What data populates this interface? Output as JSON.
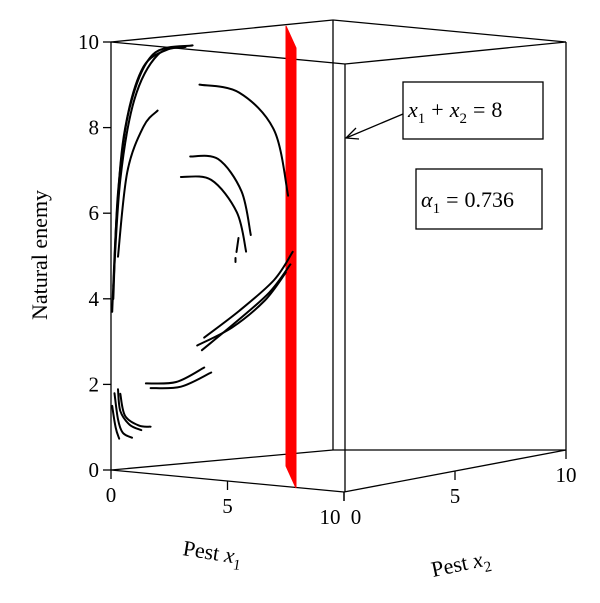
{
  "chart_data": {
    "type": "line",
    "view": "3d-phase-portrait",
    "xlabel": {
      "prefix": "Pest ",
      "var": "x",
      "sub": "1"
    },
    "x2label": {
      "prefix": "Pest ",
      "var": "x",
      "sub": "2"
    },
    "ylabel": "Natural enemy",
    "x1_ticks": [
      "0",
      "5",
      "10"
    ],
    "x2_ticks": [
      "0",
      "5",
      "10"
    ],
    "y_ticks": [
      "0",
      "2",
      "4",
      "6",
      "8",
      "10"
    ],
    "x1lim": [
      0,
      10
    ],
    "x2lim": [
      0,
      10
    ],
    "ylim": [
      0,
      10
    ],
    "plane": {
      "label_var1": "x",
      "label_sub1": "1",
      "plus": "+",
      "label_var2": "x",
      "label_sub2": "2",
      "equals": "=",
      "value": "8",
      "color": "#ff0000",
      "x1_position": 8
    },
    "parameter": {
      "var": "α",
      "sub": "1",
      "equals": "=",
      "value": "0.736"
    },
    "trajectories": [
      {
        "name": "top-arc-1",
        "points": [
          [
            0.1,
            4.0
          ],
          [
            0.3,
            6.5
          ],
          [
            0.8,
            8.5
          ],
          [
            1.8,
            9.8
          ],
          [
            3.5,
            10.1
          ]
        ]
      },
      {
        "name": "top-arc-2",
        "points": [
          [
            0.1,
            4.3
          ],
          [
            0.4,
            6.8
          ],
          [
            1.0,
            8.7
          ],
          [
            2.0,
            9.8
          ],
          [
            3.2,
            10.05
          ]
        ]
      },
      {
        "name": "top-arc-3",
        "points": [
          [
            0.05,
            3.7
          ],
          [
            0.25,
            6.0
          ],
          [
            0.6,
            8.0
          ],
          [
            1.4,
            9.5
          ],
          [
            2.6,
            10.0
          ]
        ]
      },
      {
        "name": "left-arc",
        "points": [
          [
            0.3,
            5.0
          ],
          [
            0.7,
            7.0
          ],
          [
            1.4,
            8.1
          ],
          [
            2.0,
            8.5
          ]
        ]
      },
      {
        "name": "outer-loop",
        "points": [
          [
            3.8,
            9.2
          ],
          [
            5.5,
            9.1
          ],
          [
            7.0,
            8.3
          ],
          [
            7.6,
            6.8
          ]
        ]
      },
      {
        "name": "inner-loop-1",
        "points": [
          [
            3.4,
            7.5
          ],
          [
            4.6,
            7.5
          ],
          [
            5.6,
            6.8
          ],
          [
            6.0,
            5.8
          ]
        ]
      },
      {
        "name": "inner-loop-2",
        "points": [
          [
            3.0,
            7.0
          ],
          [
            4.3,
            7.0
          ],
          [
            5.4,
            6.3
          ],
          [
            5.8,
            5.4
          ]
        ]
      },
      {
        "name": "right-fan-1",
        "points": [
          [
            4.0,
            3.3
          ],
          [
            5.5,
            4.0
          ],
          [
            7.0,
            4.8
          ],
          [
            7.8,
            5.5
          ]
        ]
      },
      {
        "name": "right-fan-2",
        "points": [
          [
            3.9,
            3.0
          ],
          [
            5.3,
            3.7
          ],
          [
            6.8,
            4.5
          ],
          [
            7.7,
            5.2
          ]
        ]
      },
      {
        "name": "right-fan-3",
        "points": [
          [
            3.7,
            3.1
          ],
          [
            5.2,
            3.6
          ],
          [
            6.6,
            4.3
          ],
          [
            7.5,
            5.0
          ]
        ]
      },
      {
        "name": "low-arc-1",
        "points": [
          [
            1.5,
            2.1
          ],
          [
            2.8,
            2.2
          ],
          [
            4.0,
            2.6
          ]
        ]
      },
      {
        "name": "low-arc-2",
        "points": [
          [
            1.7,
            2.0
          ],
          [
            3.0,
            2.1
          ],
          [
            4.3,
            2.5
          ]
        ]
      },
      {
        "name": "bottom-hook-1",
        "points": [
          [
            0.4,
            1.8
          ],
          [
            0.6,
            1.3
          ],
          [
            1.2,
            1.1
          ],
          [
            1.7,
            1.1
          ]
        ]
      },
      {
        "name": "bottom-hook-2",
        "points": [
          [
            0.3,
            1.9
          ],
          [
            0.4,
            1.4
          ],
          [
            0.8,
            1.1
          ],
          [
            1.3,
            1.0
          ]
        ]
      },
      {
        "name": "bottom-hook-3",
        "points": [
          [
            0.15,
            1.8
          ],
          [
            0.3,
            1.2
          ],
          [
            0.5,
            0.9
          ],
          [
            0.9,
            0.8
          ]
        ]
      },
      {
        "name": "bottom-hook-4",
        "points": [
          [
            0.05,
            1.5
          ],
          [
            0.2,
            1.0
          ],
          [
            0.35,
            0.75
          ]
        ]
      }
    ]
  }
}
